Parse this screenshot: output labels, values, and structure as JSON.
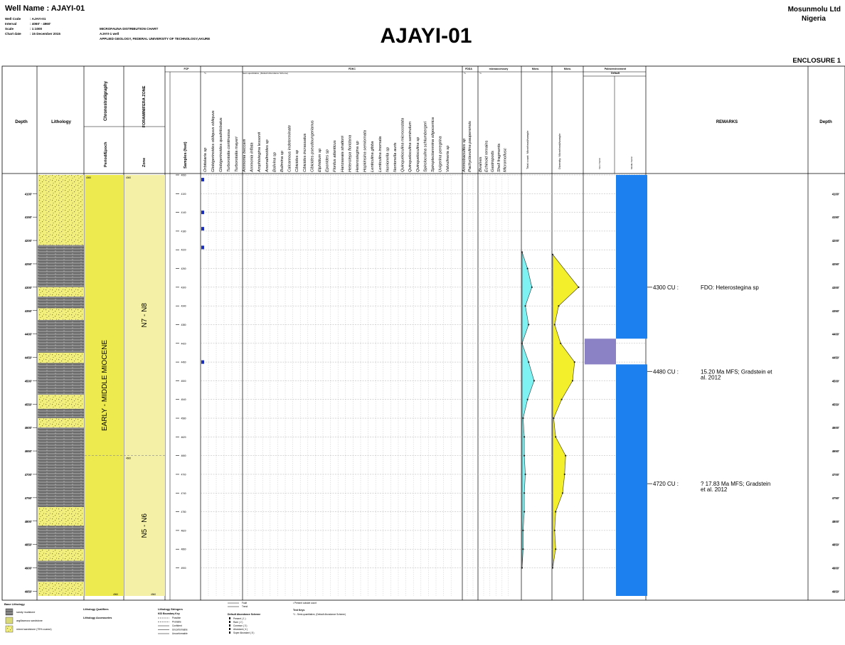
{
  "header": {
    "well_name": "Well Name : AJAYI-01",
    "meta": [
      {
        "label": "Well Code",
        "value": ": AJAYI-01"
      },
      {
        "label": "Interval",
        "value": ": 4060' - 4960'"
      },
      {
        "label": "Scale",
        "value": ": 1:1000"
      },
      {
        "label": "Chart date",
        "value": ": 15 December 2015"
      }
    ],
    "chart_type": "MICROFAUNA DISTRIBUTION CHART",
    "well": "AJAYI-1 well",
    "institution": "APPLIED GEOLOGY, FEDERAL UNIVERSITY OF TECHNOLOGY,AKURE",
    "title": "AJAYI-01",
    "company": "Mosunmolu Ltd",
    "country": "Nigeria",
    "enclosure": "ENCLOSURE 1"
  },
  "columns": {
    "depth": "Depth",
    "lithology": "Lithology",
    "chronostratigraphy": "Chronostratigraphy",
    "period_epoch": "Period/Epoch",
    "foraminifera_zone": "FORAMINIFERA ZONE",
    "zone": "Zone",
    "samples": "Samples (feet)",
    "fcp": "FCP",
    "fdkc": "FDKC",
    "fdda": "FDDA",
    "microaccessory": "microaccessory",
    "micro1": "Micro.",
    "micro2": "Micro.",
    "paleoenvironment": "Paleoenvironment",
    "paleo_default": "Default",
    "inner_neritic": "Inner Neritic",
    "middle_neritic": "Middle Neritic",
    "remarks": "REMARKS",
    "depth_right": "Depth",
    "abundance_fcp": "*1",
    "abundance_fdkc": "Semi-quantitative, (Default Abundance Scheme)",
    "abundance_fdda": "*1",
    "abundance_micro": "*1",
    "total_count": "Total count: Microfossil/sample",
    "diversity": "Diversity: Microfossil/sample"
  },
  "species": {
    "fcp": [
      "Orbitalaria sp",
      "Globigerinoides obliquus obliquus",
      "Globigerinoides quadrilobatus",
      "Turborotalia continuosa",
      "Turborotalia mayeri"
    ],
    "fdkc": [
      "Ammonia beccarii",
      "Ammonia inflata",
      "Amphistegina lessonii",
      "Anomalinoides sp",
      "Bolivina sp",
      "Bulimina sp",
      "Calcareous indeterminate",
      "Cibicides sp",
      "Cibicides incrassatus",
      "Cibicides pseudoungerianus",
      "Elphidium sp",
      "Eponides sp",
      "Florilus atlanticus",
      "Hanzawaia strattoni",
      "Heterolepa floridana",
      "Heterostegina sp",
      "Hopkinsina semiornata",
      "Lenticulina gibba",
      "Lenticulina inornata",
      "Nonionella sp",
      "Nonionella auris",
      "Quinqueloculina microcostata",
      "Quinqueloculina seminulum",
      "Quinqueloculina sp",
      "Spiroloculina schlumbergeri",
      "Spiroplectammina oligocenica",
      "Uvigerina peregrina",
      "Valvulineria sp"
    ],
    "fdda": [
      "Ammobaculites sp",
      "Pachyclavulina pauperensis"
    ],
    "micro": [
      "Bivalves",
      "Echinoid remains",
      "Gastropods",
      "Shell fragments",
      "Micromollusc"
    ]
  },
  "chart_data": {
    "type": "microfauna distribution chart",
    "interval_top": 4060,
    "interval_base": 4960,
    "depth_axis": [
      "4100'",
      "4150'",
      "4200'",
      "4250'",
      "4300'",
      "4350'",
      "4400'",
      "4450'",
      "4500'",
      "4550'",
      "4600'",
      "4650'",
      "4700'",
      "4750'",
      "4800'",
      "4850'",
      "4900'",
      "4950'"
    ],
    "samples": [
      "4060",
      "4100",
      "4140",
      "4180",
      "4220",
      "4260",
      "4300",
      "4340",
      "4380",
      "4420",
      "4460",
      "4500",
      "4540",
      "4580",
      "4620",
      "4660",
      "4700",
      "4740",
      "4780",
      "4820",
      "4860",
      "4900"
    ],
    "chronostratigraphy": {
      "label": "EARLY - MIDDLE MIOCENE",
      "top_label": "4060",
      "base_label": "4960"
    },
    "zones": [
      {
        "name": "N7 - N8",
        "top": 4060,
        "base": 4660,
        "top_label": "4060"
      },
      {
        "name": "N5 - N6",
        "top": 4660,
        "base": 4960,
        "top_label": "4660",
        "base_label": "4960"
      }
    ],
    "lithology": [
      {
        "top": 4060,
        "base": 4210,
        "type": "sand"
      },
      {
        "top": 4210,
        "base": 4300,
        "type": "shale"
      },
      {
        "top": 4300,
        "base": 4320,
        "type": "sand"
      },
      {
        "top": 4320,
        "base": 4345,
        "type": "shale"
      },
      {
        "top": 4345,
        "base": 4370,
        "type": "sand"
      },
      {
        "top": 4370,
        "base": 4440,
        "type": "shale"
      },
      {
        "top": 4440,
        "base": 4462,
        "type": "sand"
      },
      {
        "top": 4462,
        "base": 4530,
        "type": "shale"
      },
      {
        "top": 4530,
        "base": 4560,
        "type": "sand"
      },
      {
        "top": 4560,
        "base": 4580,
        "type": "shale"
      },
      {
        "top": 4580,
        "base": 4600,
        "type": "sand"
      },
      {
        "top": 4600,
        "base": 4770,
        "type": "shale"
      },
      {
        "top": 4770,
        "base": 4810,
        "type": "sand"
      },
      {
        "top": 4810,
        "base": 4860,
        "type": "shale"
      },
      {
        "top": 4860,
        "base": 4885,
        "type": "sand"
      },
      {
        "top": 4885,
        "base": 4930,
        "type": "shale"
      },
      {
        "top": 4930,
        "base": 4960,
        "type": "sand"
      }
    ],
    "fcp_occurrences": [
      4070,
      4140,
      4175,
      4215,
      4460
    ],
    "total_count": {
      "x_max": 26,
      "depth": [
        4225,
        4260,
        4300,
        4340,
        4380,
        4420,
        4460,
        4500,
        4540,
        4580,
        4620,
        4660,
        4700,
        4740,
        4780,
        4820,
        4860,
        4900
      ],
      "values": [
        0,
        5,
        9,
        3,
        6,
        0,
        6,
        11,
        5,
        1,
        2,
        2,
        3,
        2,
        2,
        1,
        1,
        0
      ]
    },
    "diversity": {
      "x_max": 30,
      "depth": [
        4230,
        4300,
        4340,
        4380,
        4420,
        4460,
        4500,
        4540,
        4580,
        4620,
        4660,
        4700,
        4740,
        4780,
        4820,
        4860,
        4900
      ],
      "values": [
        0,
        26,
        6,
        2,
        8,
        22,
        20,
        9,
        1,
        3,
        13,
        12,
        10,
        3,
        2,
        3,
        0
      ]
    },
    "paleoenvironment": [
      {
        "top": 4060,
        "base": 4410,
        "env": "Middle Neritic"
      },
      {
        "top": 4410,
        "base": 4465,
        "env": "Inner Neritic"
      },
      {
        "top": 4465,
        "base": 4960,
        "env": "Middle Neritic"
      }
    ],
    "remarks": [
      {
        "depth_label": "4300 CU :",
        "depth": 4300,
        "text": "FDO: Heterostegina sp"
      },
      {
        "depth_label": "4480 CU :",
        "depth": 4480,
        "text": "15.20 Ma MFS; Gradstein et al. 2012"
      },
      {
        "depth_label": "4720 CU :",
        "depth": 4720,
        "text": "? 17.83 Ma MFS; Gradstein et al. 2012"
      }
    ]
  },
  "legend": {
    "base_lithology_title": "Base Lithology",
    "base_lithology": [
      {
        "label": "sandy mudstone",
        "color": "#707070"
      },
      {
        "label": "argillaceous sandstone",
        "color": "#d9d97a"
      },
      {
        "label": "mixed sandstone (75% coarse)",
        "color": "#f0ee80"
      }
    ],
    "qualifiers_title": "Lithology Qualifiers",
    "accessories_title": "Lithology Accessories",
    "stringers_title": "Lithology Stringers",
    "boundary_title": "KID Boundary Key",
    "boundary_items": [
      "Possible",
      "Probable",
      "Confident",
      "Unconformable",
      "Unconformable"
    ],
    "fault_items": [
      "Fault",
      "Trend"
    ],
    "abundance_title": "Default Abundance Scheme",
    "abundance_items": [
      "Present ( 1 )",
      "Rare ( 2 )",
      "Common ( 3 )",
      "Abundant ( 4 )",
      "Super Abundant ( 5 )"
    ],
    "present_outside": "Present outside count",
    "text_keys_title": "Text Keys",
    "text_keys_items": [
      "*1 - Semi-quantitative, (Default Abundance Scheme)"
    ]
  },
  "colors": {
    "shale": "#707070",
    "sand": "#f2ef7c",
    "chrono": "#ecea4e",
    "zone": "#f4f1a6",
    "total_count": "#7ef2f2",
    "diversity": "#f3ef2a",
    "middle_neritic": "#1c80ee",
    "inner_neritic": "#8a82c4"
  }
}
